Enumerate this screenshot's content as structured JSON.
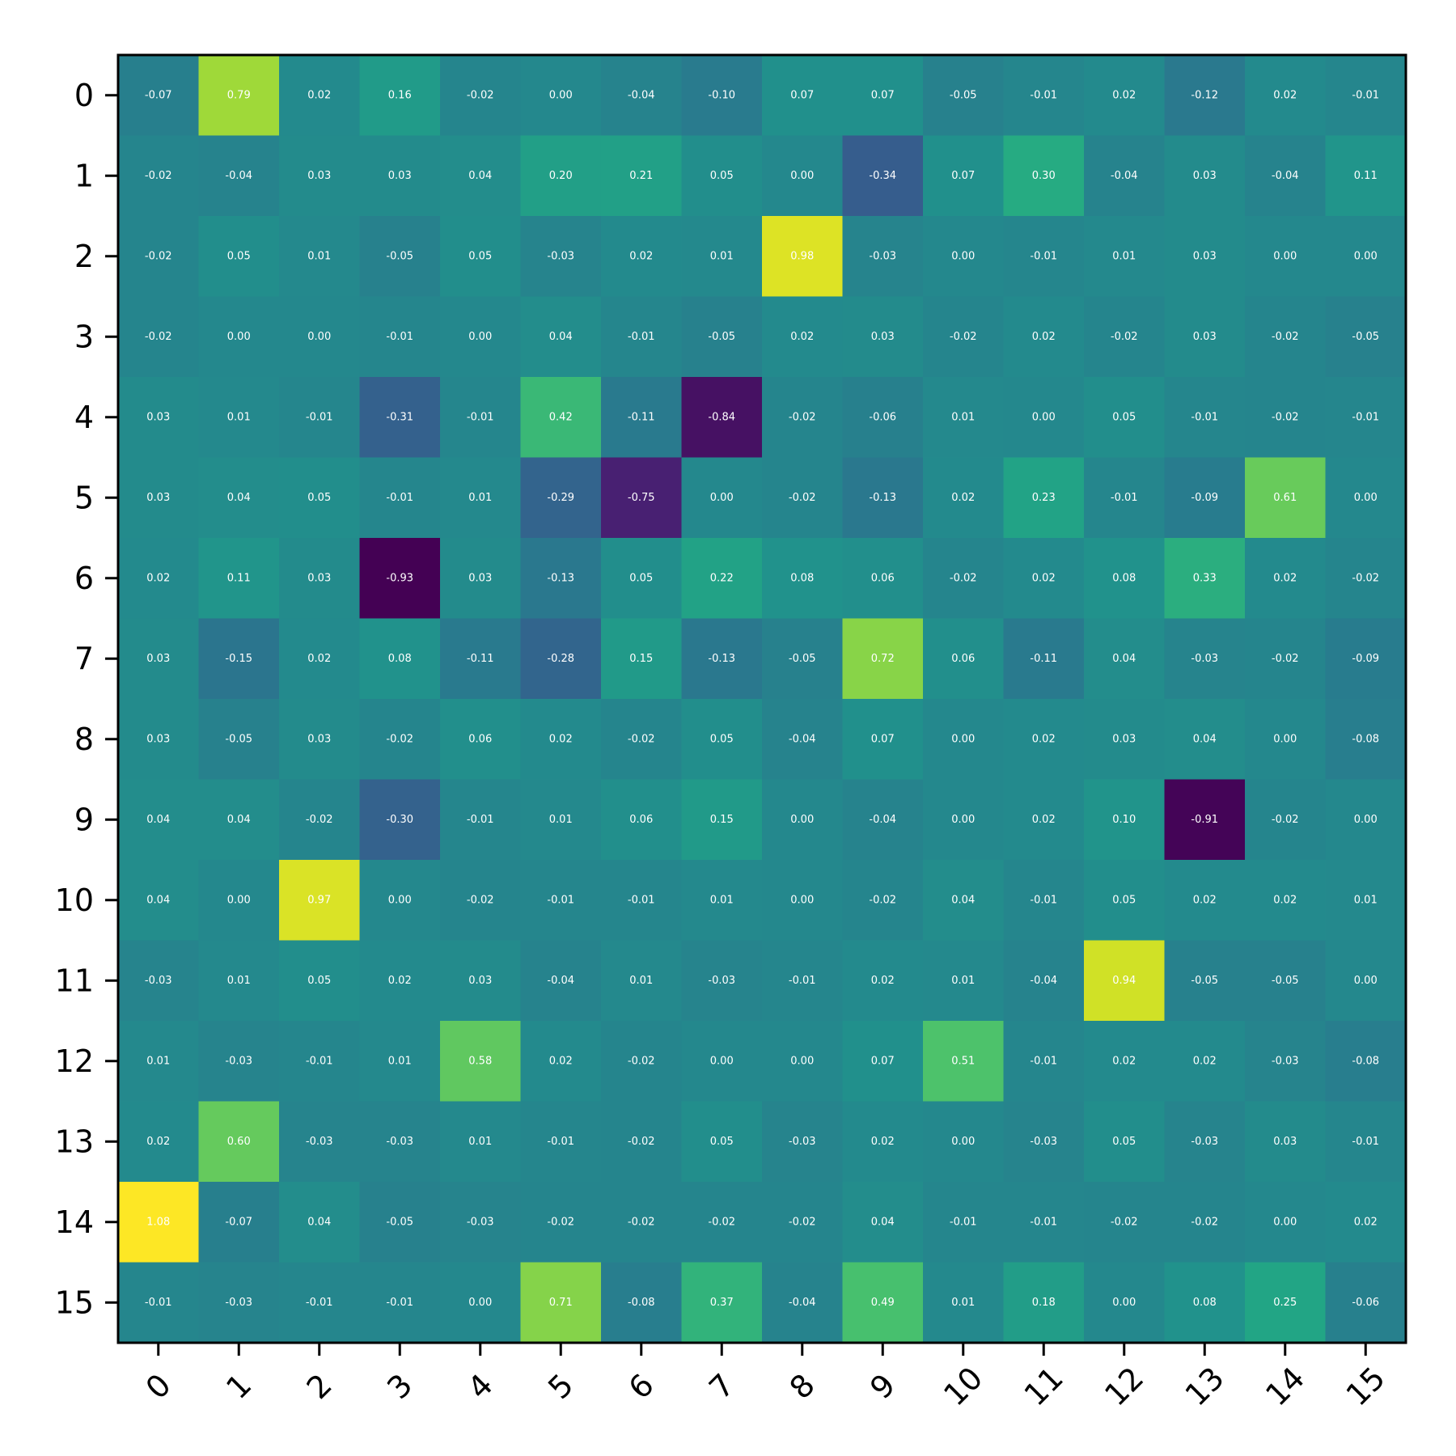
{
  "chart_data": {
    "type": "heatmap",
    "title": "",
    "xlabel": "",
    "ylabel": "",
    "x_categories": [
      "0",
      "1",
      "2",
      "3",
      "4",
      "5",
      "6",
      "7",
      "8",
      "9",
      "10",
      "11",
      "12",
      "13",
      "14",
      "15"
    ],
    "y_categories": [
      "0",
      "1",
      "2",
      "3",
      "4",
      "5",
      "6",
      "7",
      "8",
      "9",
      "10",
      "11",
      "12",
      "13",
      "14",
      "15"
    ],
    "colormap": "viridis",
    "value_range": [
      -0.93,
      1.08
    ],
    "cell_labels": true,
    "label_color": "#ffffff",
    "values": [
      [
        -0.07,
        0.79,
        0.02,
        0.16,
        -0.02,
        -0.0,
        -0.04,
        -0.1,
        0.07,
        0.07,
        -0.05,
        -0.01,
        0.02,
        -0.12,
        0.02,
        -0.01
      ],
      [
        -0.02,
        -0.04,
        0.03,
        0.03,
        0.04,
        0.2,
        0.21,
        0.05,
        0.0,
        -0.34,
        0.07,
        0.3,
        -0.04,
        0.03,
        -0.04,
        0.11
      ],
      [
        -0.02,
        0.05,
        0.01,
        -0.05,
        0.05,
        -0.03,
        0.02,
        0.01,
        0.98,
        -0.03,
        0.0,
        -0.01,
        0.01,
        0.03,
        -0.0,
        0.0
      ],
      [
        -0.02,
        -0.0,
        -0.0,
        -0.01,
        -0.0,
        0.04,
        -0.01,
        -0.05,
        0.02,
        0.03,
        -0.02,
        0.02,
        -0.02,
        0.03,
        -0.02,
        -0.05
      ],
      [
        0.03,
        0.01,
        -0.01,
        -0.31,
        -0.01,
        0.42,
        -0.11,
        -0.84,
        -0.02,
        -0.06,
        0.01,
        -0.0,
        0.05,
        -0.01,
        -0.02,
        -0.01
      ],
      [
        0.03,
        0.04,
        0.05,
        -0.01,
        0.01,
        -0.29,
        -0.75,
        -0.0,
        -0.02,
        -0.13,
        0.02,
        0.23,
        -0.01,
        -0.09,
        0.61,
        0.0
      ],
      [
        0.02,
        0.11,
        0.03,
        -0.93,
        0.03,
        -0.13,
        0.05,
        0.22,
        0.08,
        0.06,
        -0.02,
        0.02,
        0.08,
        0.33,
        0.02,
        -0.02
      ],
      [
        0.03,
        -0.15,
        0.02,
        0.08,
        -0.11,
        -0.28,
        0.15,
        -0.13,
        -0.05,
        0.72,
        0.06,
        -0.11,
        0.04,
        -0.03,
        -0.02,
        -0.09
      ],
      [
        0.03,
        -0.05,
        0.03,
        -0.02,
        0.06,
        0.02,
        -0.02,
        0.05,
        -0.04,
        0.07,
        0.0,
        0.02,
        0.03,
        0.04,
        -0.0,
        -0.08
      ],
      [
        0.04,
        0.04,
        -0.02,
        -0.3,
        -0.01,
        0.01,
        0.06,
        0.15,
        -0.0,
        -0.04,
        -0.0,
        0.02,
        0.1,
        -0.91,
        -0.02,
        -0.0
      ],
      [
        0.04,
        -0.0,
        0.97,
        -0.0,
        -0.02,
        -0.01,
        -0.01,
        0.01,
        0.0,
        -0.02,
        0.04,
        -0.01,
        0.05,
        0.02,
        0.02,
        0.01
      ],
      [
        -0.03,
        0.01,
        0.05,
        0.02,
        0.03,
        -0.04,
        0.01,
        -0.03,
        -0.01,
        0.02,
        0.01,
        -0.04,
        0.94,
        -0.05,
        -0.05,
        0.0
      ],
      [
        0.01,
        -0.03,
        -0.01,
        0.01,
        0.58,
        0.02,
        -0.02,
        -0.0,
        0.0,
        0.07,
        0.51,
        -0.01,
        0.02,
        0.02,
        -0.03,
        -0.08
      ],
      [
        0.02,
        0.6,
        -0.03,
        -0.03,
        0.01,
        -0.01,
        -0.02,
        0.05,
        -0.03,
        0.02,
        -0.0,
        -0.03,
        0.05,
        -0.03,
        0.03,
        -0.01
      ],
      [
        1.08,
        -0.07,
        0.04,
        -0.05,
        -0.03,
        -0.02,
        -0.02,
        -0.02,
        -0.02,
        0.04,
        -0.01,
        -0.01,
        -0.02,
        -0.02,
        -0.0,
        0.02
      ],
      [
        -0.01,
        -0.03,
        -0.01,
        -0.01,
        0.0,
        0.71,
        -0.08,
        0.37,
        -0.04,
        0.49,
        0.01,
        0.18,
        -0.0,
        0.08,
        0.25,
        -0.06
      ]
    ]
  }
}
